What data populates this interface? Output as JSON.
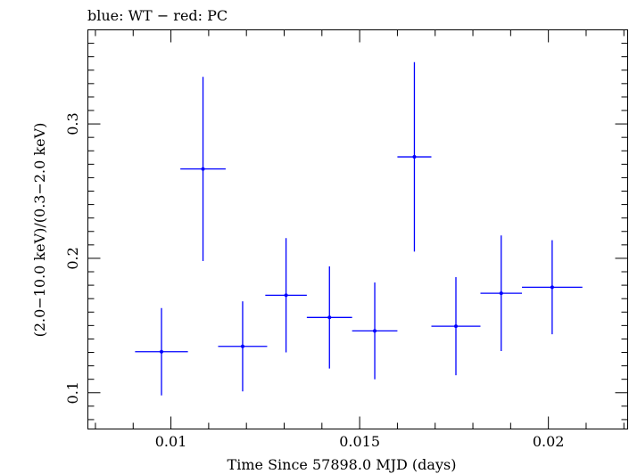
{
  "chart_data": {
    "type": "scatter",
    "title": "blue: WT − red: PC",
    "xlabel": "Time Since 57898.0 MJD (days)",
    "ylabel": "(2.0−10.0 keV)/(0.3−2.0 keV)",
    "xlim": [
      0.0078,
      0.0221
    ],
    "ylim": [
      0.073,
      0.37
    ],
    "xticks": [
      {
        "value": 0.01,
        "label": "0.01"
      },
      {
        "value": 0.015,
        "label": "0.015"
      },
      {
        "value": 0.02,
        "label": "0.02"
      }
    ],
    "yticks": [
      {
        "value": 0.1,
        "label": "0.1"
      },
      {
        "value": 0.2,
        "label": "0.2"
      },
      {
        "value": 0.3,
        "label": "0.3"
      }
    ],
    "grid": false,
    "series": [
      {
        "color": "#0000ff",
        "points": [
          {
            "x": 0.00975,
            "xerr": 0.0007,
            "y": 0.1305,
            "yerr_low": 0.0325,
            "yerr_high": 0.0325
          },
          {
            "x": 0.01085,
            "xerr": 0.0006,
            "y": 0.2665,
            "yerr_low": 0.0685,
            "yerr_high": 0.0685
          },
          {
            "x": 0.0119,
            "xerr": 0.00065,
            "y": 0.1345,
            "yerr_low": 0.0335,
            "yerr_high": 0.0335
          },
          {
            "x": 0.01305,
            "xerr": 0.00055,
            "y": 0.1725,
            "yerr_low": 0.0425,
            "yerr_high": 0.0425
          },
          {
            "x": 0.0142,
            "xerr": 0.0006,
            "y": 0.156,
            "yerr_low": 0.038,
            "yerr_high": 0.038
          },
          {
            "x": 0.0154,
            "xerr": 0.0006,
            "y": 0.146,
            "yerr_low": 0.036,
            "yerr_high": 0.036
          },
          {
            "x": 0.01645,
            "xerr": 0.00045,
            "y": 0.2755,
            "yerr_low": 0.0705,
            "yerr_high": 0.0705
          },
          {
            "x": 0.01755,
            "xerr": 0.00065,
            "y": 0.1495,
            "yerr_low": 0.0365,
            "yerr_high": 0.0365
          },
          {
            "x": 0.01875,
            "xerr": 0.00055,
            "y": 0.174,
            "yerr_low": 0.043,
            "yerr_high": 0.043
          },
          {
            "x": 0.0201,
            "xerr": 0.0008,
            "y": 0.1785,
            "yerr_low": 0.035,
            "yerr_high": 0.035
          }
        ]
      }
    ]
  }
}
